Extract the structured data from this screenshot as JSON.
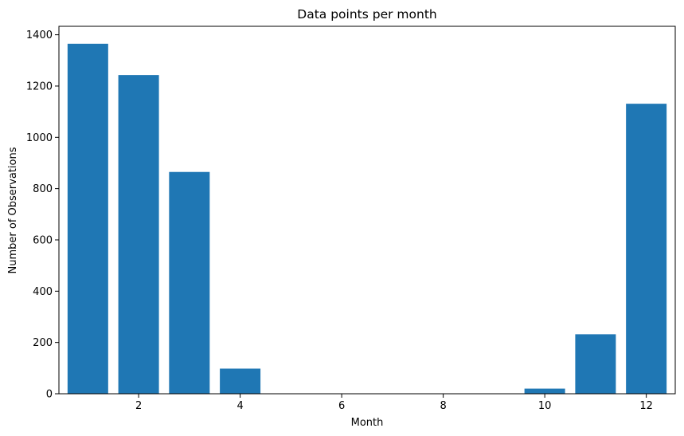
{
  "chart_data": {
    "type": "bar",
    "title": "Data points per month",
    "xlabel": "Month",
    "ylabel": "Number of Observations",
    "x": [
      1,
      2,
      3,
      4,
      10,
      11,
      12
    ],
    "values": [
      1365,
      1243,
      865,
      98,
      20,
      232,
      1131
    ],
    "xlim": [
      0.43,
      12.57
    ],
    "ylim": [
      0,
      1433
    ],
    "xticks": [
      2,
      4,
      6,
      8,
      10,
      12
    ],
    "yticks": [
      0,
      200,
      400,
      600,
      800,
      1000,
      1200,
      1400
    ],
    "bar_width": 0.8,
    "bar_color": "#1f77b4",
    "grid": false,
    "legend": false
  }
}
